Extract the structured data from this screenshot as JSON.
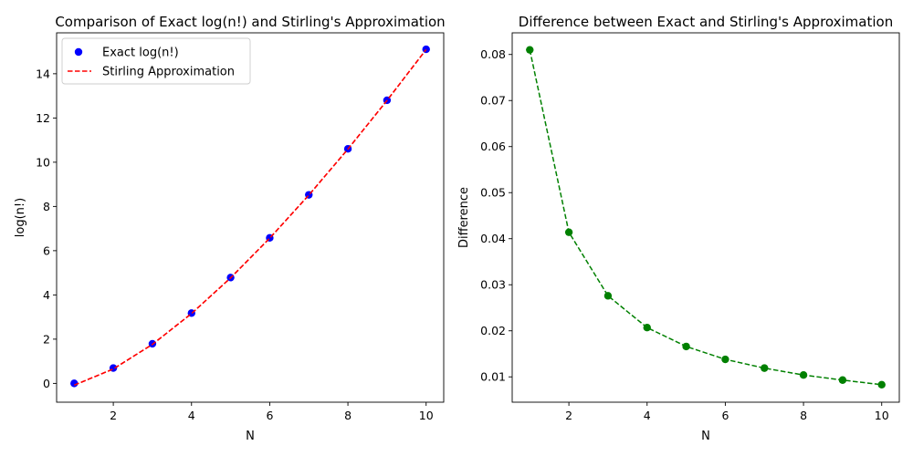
{
  "chart_data": [
    {
      "type": "line",
      "title": "Comparison of Exact log(n!) and Stirling's Approximation",
      "xlabel": "N",
      "ylabel": "log(n!)",
      "xlim": [
        0.55,
        10.45
      ],
      "ylim": [
        -0.85,
        15.85
      ],
      "xticks": [
        2,
        4,
        6,
        8,
        10
      ],
      "yticks": [
        0,
        2,
        4,
        6,
        8,
        10,
        12,
        14
      ],
      "legend_position": "top-left",
      "x": [
        1,
        2,
        3,
        4,
        5,
        6,
        7,
        8,
        9,
        10
      ],
      "series": [
        {
          "name": "Exact log(n!)",
          "kind": "scatter",
          "color": "#0000ff",
          "values": [
            0.0,
            0.693,
            1.792,
            3.178,
            4.787,
            6.579,
            8.525,
            10.605,
            12.802,
            15.104
          ]
        },
        {
          "name": "Stirling Approximation",
          "kind": "line",
          "style": "dashed",
          "color": "#ff0000",
          "values": [
            -0.081,
            0.652,
            1.764,
            3.157,
            4.771,
            6.565,
            8.513,
            10.594,
            12.793,
            15.096
          ]
        }
      ]
    },
    {
      "type": "line",
      "title": "Difference between Exact and Stirling's Approximation",
      "xlabel": "N",
      "ylabel": "Difference",
      "xlim": [
        0.55,
        10.45
      ],
      "ylim": [
        0.0045,
        0.0847
      ],
      "xticks": [
        2,
        4,
        6,
        8,
        10
      ],
      "yticks": [
        0.01,
        0.02,
        0.03,
        0.04,
        0.05,
        0.06,
        0.07,
        0.08
      ],
      "x": [
        1,
        2,
        3,
        4,
        5,
        6,
        7,
        8,
        9,
        10
      ],
      "series": [
        {
          "kind": "line+markers",
          "style": "dashed",
          "color": "#008000",
          "values": [
            0.081,
            0.0414,
            0.0276,
            0.0207,
            0.0166,
            0.0138,
            0.0119,
            0.0104,
            0.0093,
            0.0083
          ]
        }
      ]
    }
  ]
}
